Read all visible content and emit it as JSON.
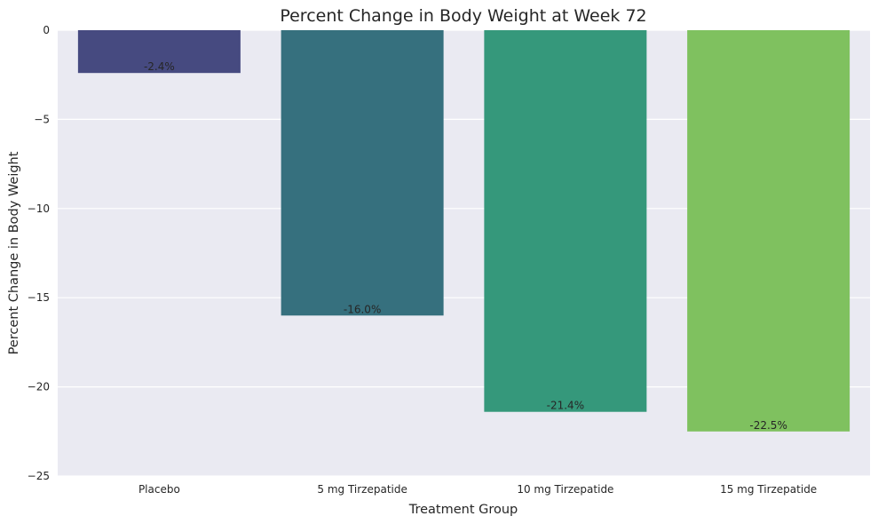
{
  "chart_data": {
    "type": "bar",
    "title": "Percent Change in Body Weight at Week 72",
    "xlabel": "Treatment Group",
    "ylabel": "Percent Change in Body Weight",
    "categories": [
      "Placebo",
      "5 mg Tirzepatide",
      "10 mg Tirzepatide",
      "15 mg Tirzepatide"
    ],
    "values": [
      -2.4,
      -16.0,
      -21.4,
      -22.5
    ],
    "data_labels": [
      "-2.4%",
      "-16.0%",
      "-21.4%",
      "-22.5%"
    ],
    "colors": [
      "#464a80",
      "#36707e",
      "#35987b",
      "#7fc15f"
    ],
    "ylim": [
      -25,
      0
    ],
    "yticks": [
      0,
      -5,
      -10,
      -15,
      -20,
      -25
    ],
    "ytick_labels": [
      "0",
      "−5",
      "−10",
      "−15",
      "−20",
      "−25"
    ],
    "grid": true,
    "background": "#eaeaf2"
  }
}
